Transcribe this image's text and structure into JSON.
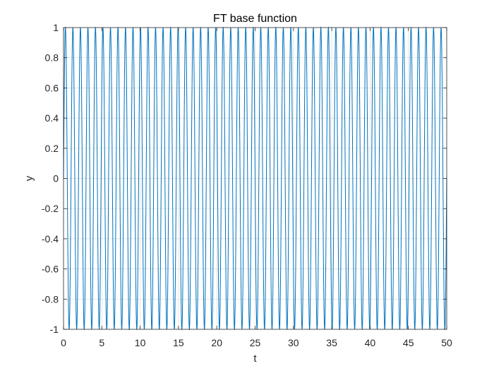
{
  "chart_data": {
    "type": "line",
    "title": "FT base function",
    "xlabel": "t",
    "ylabel": "y",
    "xlim": [
      0,
      50
    ],
    "ylim": [
      -1,
      1
    ],
    "x_ticks": [
      0,
      5,
      10,
      15,
      20,
      25,
      30,
      35,
      40,
      45,
      50
    ],
    "y_ticks": [
      -1,
      -0.8,
      -0.6,
      -0.4,
      -0.2,
      0,
      0.2,
      0.4,
      0.6,
      0.8,
      1
    ],
    "x_tick_labels": [
      "0",
      "5",
      "10",
      "15",
      "20",
      "25",
      "30",
      "35",
      "40",
      "45",
      "50"
    ],
    "y_tick_labels": [
      "-1",
      "-0.8",
      "-0.6",
      "-0.4",
      "-0.2",
      "0",
      "0.2",
      "0.4",
      "0.6",
      "0.8",
      "1"
    ],
    "grid": true,
    "series": [
      {
        "function": "y = sin(2*pi*f*t)",
        "frequency": 1.02,
        "t_start": 0,
        "t_end": 50,
        "color": "#0072bd"
      }
    ]
  }
}
